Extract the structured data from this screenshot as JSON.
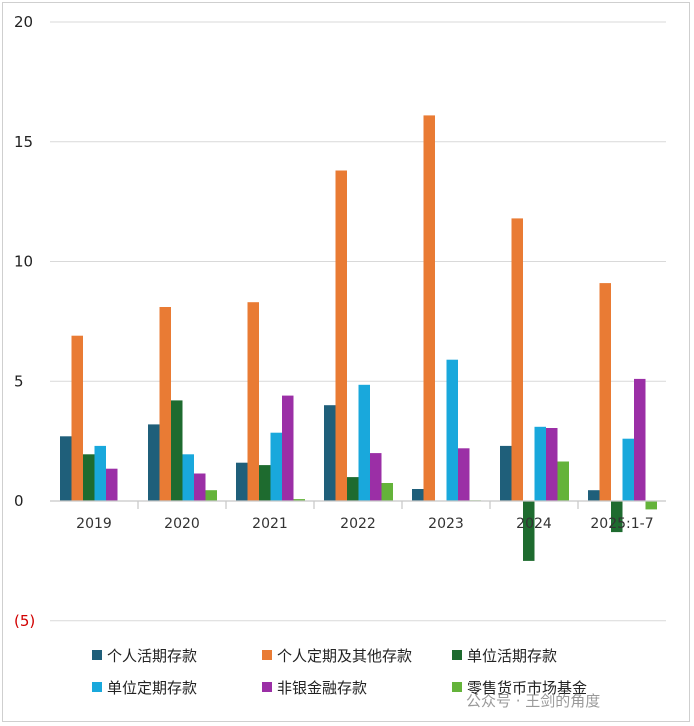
{
  "chart_data": {
    "type": "bar",
    "categories": [
      "2019",
      "2020",
      "2021",
      "2022",
      "2023",
      "2024",
      "2025:1-7"
    ],
    "y_ticks": [
      "20",
      "15",
      "10",
      "5",
      "0",
      "(5)"
    ],
    "ylim": [
      -5,
      20
    ],
    "grid": true,
    "legend_position": "bottom",
    "series": [
      {
        "name": "个人活期存款",
        "color": "#1f5f7a",
        "values": [
          2.7,
          3.2,
          1.6,
          4.0,
          0.5,
          2.3,
          0.45
        ]
      },
      {
        "name": "个人定期及其他存款",
        "color": "#e97b34",
        "values": [
          6.9,
          8.1,
          8.3,
          13.8,
          16.1,
          11.8,
          9.1
        ]
      },
      {
        "name": "单位活期存款",
        "color": "#1e6b2f",
        "values": [
          1.95,
          4.2,
          1.5,
          1.0,
          0.0,
          -2.5,
          -1.3
        ]
      },
      {
        "name": "单位定期存款",
        "color": "#19a8dc",
        "values": [
          2.3,
          1.95,
          2.85,
          4.85,
          5.9,
          3.1,
          2.6
        ]
      },
      {
        "name": "非银金融存款",
        "color": "#9b2fa6",
        "values": [
          1.35,
          1.15,
          4.4,
          2.0,
          2.2,
          3.05,
          5.1
        ]
      },
      {
        "name": "零售货币市场基金",
        "color": "#64b33a",
        "values": [
          0.0,
          0.45,
          0.08,
          0.75,
          0.03,
          1.65,
          -0.35
        ]
      }
    ]
  },
  "watermark": "公众号 · 王剑的角度"
}
